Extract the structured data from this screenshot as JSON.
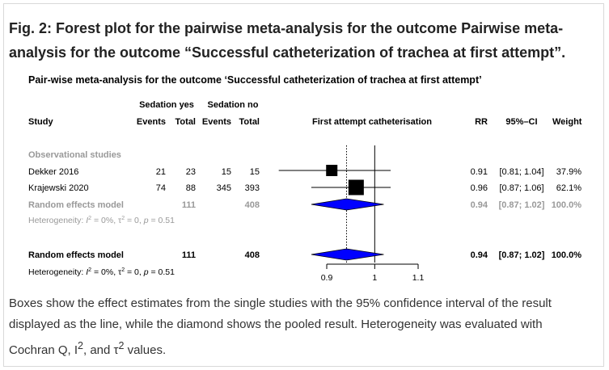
{
  "figure": {
    "label": "Fig. 2:",
    "title": "Forest plot for the pairwise meta-analysis for the outcome Pairwise meta-analysis for the outcome “Successful catheterization of trachea at first attempt”."
  },
  "caption": {
    "text_1": "Boxes show the effect estimates from the single studies with the 95% confidence interval of the result displayed as the line, while the diamond shows the pooled result. Heterogeneity was evaluated with Cochran Q, I",
    "sup_1": "2",
    "text_2": ", and τ",
    "sup_2": "2",
    "text_3": " values."
  },
  "chart_data": {
    "type": "forest",
    "title": "Pair-wise meta-analysis for the outcome ‘Successful catheterization of trachea at first attempt’",
    "headers": {
      "group_1": "Sedation yes",
      "group_2": "Sedation no",
      "study": "Study",
      "events_1": "Events",
      "total_1": "Total",
      "events_2": "Events",
      "total_2": "Total",
      "plot": "First attempt catheterisation",
      "rr": "RR",
      "ci": "95%–CI",
      "weight": "Weight"
    },
    "subgroup_label": "Observational studies",
    "studies": [
      {
        "study": "Dekker 2016",
        "events_1": "21",
        "total_1": "23",
        "events_2": "15",
        "total_2": "15",
        "rr": 0.91,
        "ci_low": 0.81,
        "ci_high": 1.04,
        "rr_text": "0.91",
        "ci_text": "[0.81; 1.04]",
        "weight_text": "37.9%",
        "weight": 37.9
      },
      {
        "study": "Krajewski 2020",
        "events_1": "74",
        "total_1": "88",
        "events_2": "345",
        "total_2": "393",
        "rr": 0.96,
        "ci_low": 0.87,
        "ci_high": 1.06,
        "rr_text": "0.96",
        "ci_text": "[0.87; 1.06]",
        "weight_text": "62.1%",
        "weight": 62.1
      }
    ],
    "subgroup_pooled": {
      "label": "Random effects model",
      "total_1": "111",
      "total_2": "408",
      "rr": 0.94,
      "ci_low": 0.87,
      "ci_high": 1.02,
      "rr_text": "0.94",
      "ci_text": "[0.87; 1.02]",
      "weight_text": "100.0%",
      "het_prefix": "Heterogeneity: ",
      "het_i": "I",
      "het_i_rest": " = 0%, ",
      "het_tau": "τ",
      "het_tau_rest": " = 0, ",
      "het_p": "p",
      "het_p_rest": " = 0.51"
    },
    "overall_pooled": {
      "label": "Random effects model",
      "total_1": "111",
      "total_2": "408",
      "rr": 0.94,
      "ci_low": 0.87,
      "ci_high": 1.02,
      "rr_text": "0.94",
      "ci_text": "[0.87; 1.02]",
      "weight_text": "100.0%",
      "het_prefix": "Heterogeneity: ",
      "het_i": "I",
      "het_i_rest": " = 0%, ",
      "het_tau": "τ",
      "het_tau_rest": " = 0, ",
      "het_p": "p",
      "het_p_rest": " = 0.51"
    },
    "x_axis": {
      "scale": "log",
      "ticks": [
        0.9,
        1,
        1.1
      ],
      "tick_labels": [
        "0.9",
        "1",
        "1.1"
      ],
      "null_value": 1
    },
    "colors": {
      "box": "#000000",
      "diamond": "#0000ff",
      "grey_text": "#999999"
    }
  }
}
